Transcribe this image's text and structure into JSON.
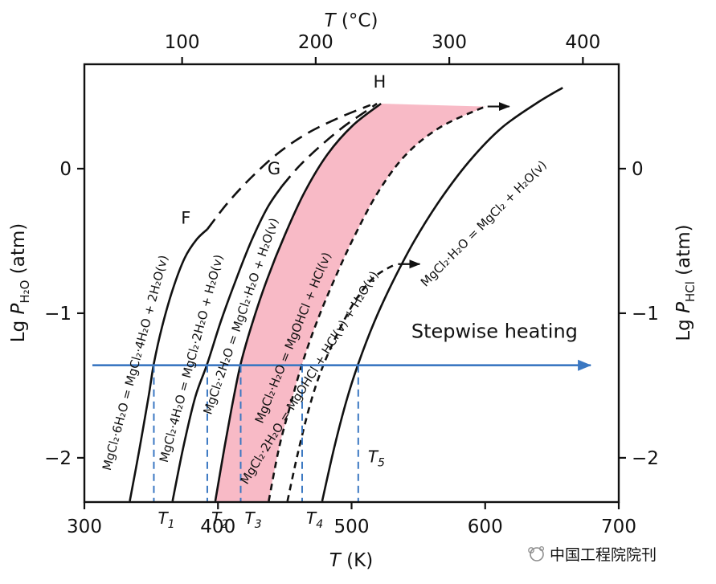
{
  "figure": {
    "watermark": {
      "text": "中国工程院院刊",
      "color": "#8f8f8f",
      "icon": "journal-logo"
    }
  },
  "chart_data": {
    "type": "line",
    "axes": {
      "bottom": {
        "label_italic": "T",
        "label_rest": " (K)",
        "min": 300,
        "max": 700,
        "ticks": [
          {
            "v": 300,
            "label": "300"
          },
          {
            "v": 400,
            "label": "400"
          },
          {
            "v": 500,
            "label": "500"
          },
          {
            "v": 600,
            "label": "600"
          },
          {
            "v": 700,
            "label": "700"
          }
        ]
      },
      "top": {
        "label_italic": "T",
        "label_rest": " (°C)",
        "offset_k": 273.15,
        "ticks": [
          {
            "c": 100,
            "label": "100"
          },
          {
            "c": 200,
            "label": "200"
          },
          {
            "c": 300,
            "label": "300"
          },
          {
            "c": 400,
            "label": "400"
          }
        ]
      },
      "left": {
        "label_pre": "Lg ",
        "label_italic": "P",
        "label_sub": "H₂O",
        "label_post": " (atm)",
        "min": -2.306,
        "max": 0.722,
        "ticks": [
          {
            "v": 0,
            "label": "0"
          },
          {
            "v": -1,
            "label": "−1"
          },
          {
            "v": -2,
            "label": "−2"
          }
        ]
      },
      "right": {
        "label_pre": "Lg ",
        "label_italic": "P",
        "label_sub": "HCl",
        "label_post": " (atm)",
        "ticks": [
          {
            "v": 0,
            "label": "0"
          },
          {
            "v": -1,
            "label": "−1"
          },
          {
            "v": -2,
            "label": "−2"
          }
        ]
      }
    },
    "series": [
      {
        "id": "mgcl2-6h2o-dehydration",
        "name": "MgCl₂·6H₂O = MgCl₂·4H₂O + 2H₂O(v)",
        "style": "solid",
        "color": "#111111",
        "points": [
          [
            334,
            -2.3
          ],
          [
            341,
            -1.95
          ],
          [
            348,
            -1.58
          ],
          [
            352,
            -1.35
          ],
          [
            358,
            -1.1
          ],
          [
            366,
            -0.84
          ],
          [
            375,
            -0.62
          ],
          [
            384,
            -0.49
          ],
          [
            392,
            -0.42
          ]
        ]
      },
      {
        "id": "mgcl2-6h2o-metastable-ext",
        "style": "dashed-long",
        "color": "#111111",
        "points": [
          [
            392,
            -0.42
          ],
          [
            407,
            -0.24
          ],
          [
            424,
            -0.07
          ],
          [
            444,
            0.1
          ],
          [
            466,
            0.24
          ],
          [
            490,
            0.35
          ],
          [
            514,
            0.44
          ]
        ]
      },
      {
        "id": "mgcl2-4h2o-dehydration",
        "name": "MgCl₂·4H₂O = MgCl₂·2H₂O + H₂O(v)",
        "style": "solid",
        "color": "#111111",
        "points": [
          [
            366,
            -2.3
          ],
          [
            374,
            -1.93
          ],
          [
            383,
            -1.58
          ],
          [
            392,
            -1.35
          ],
          [
            402,
            -1.06
          ],
          [
            413,
            -0.78
          ],
          [
            425,
            -0.5
          ],
          [
            437,
            -0.27
          ],
          [
            448,
            -0.12
          ]
        ]
      },
      {
        "id": "mgcl2-4h2o-metastable-ext",
        "style": "dashed-long",
        "color": "#111111",
        "points": [
          [
            448,
            -0.12
          ],
          [
            461,
            0.02
          ],
          [
            477,
            0.16
          ],
          [
            494,
            0.29
          ],
          [
            508,
            0.38
          ],
          [
            519,
            0.45
          ]
        ]
      },
      {
        "id": "mgcl2-2h2o-dehydration",
        "name": "MgCl₂·2H₂O = MgCl₂·H₂O + H₂O(v)",
        "style": "solid",
        "color": "#111111",
        "points": [
          [
            398,
            -2.3
          ],
          [
            405,
            -1.92
          ],
          [
            411,
            -1.62
          ],
          [
            417,
            -1.35
          ],
          [
            426,
            -1.06
          ],
          [
            437,
            -0.76
          ],
          [
            450,
            -0.46
          ],
          [
            465,
            -0.16
          ],
          [
            482,
            0.1
          ],
          [
            501,
            0.3
          ],
          [
            522,
            0.45
          ]
        ]
      },
      {
        "id": "mgcl2-h2o-hydrolysis",
        "name": "MgCl₂·H₂O = MgOHCl + HCl(v)",
        "style": "dashed-short",
        "color": "#111111",
        "end_arrow": true,
        "points": [
          [
            438,
            -2.3
          ],
          [
            446,
            -1.92
          ],
          [
            455,
            -1.61
          ],
          [
            463,
            -1.35
          ],
          [
            474,
            -1.06
          ],
          [
            487,
            -0.77
          ],
          [
            502,
            -0.47
          ],
          [
            520,
            -0.16
          ],
          [
            541,
            0.1
          ],
          [
            567,
            0.29
          ],
          [
            600,
            0.43
          ]
        ]
      },
      {
        "id": "mgcl2-2h2o-hydrolysis",
        "name": "MgCl₂·2H₂O = MgOHCl + HCl(v) + H₂O(v)",
        "style": "dashed-short",
        "color": "#111111",
        "end_arrow": true,
        "points": [
          [
            452,
            -2.3
          ],
          [
            460,
            -1.96
          ],
          [
            469,
            -1.63
          ],
          [
            478,
            -1.38
          ],
          [
            490,
            -1.13
          ],
          [
            503,
            -0.91
          ],
          [
            517,
            -0.75
          ],
          [
            533,
            -0.66
          ]
        ]
      },
      {
        "id": "mgcl2-h2o-full-dehydration",
        "name": "MgCl₂·H₂O = MgCl₂ + H₂O(v)",
        "style": "solid",
        "color": "#111111",
        "points": [
          [
            478,
            -2.3
          ],
          [
            487,
            -1.93
          ],
          [
            496,
            -1.61
          ],
          [
            505,
            -1.35
          ],
          [
            517,
            -1.06
          ],
          [
            531,
            -0.78
          ],
          [
            547,
            -0.5
          ],
          [
            566,
            -0.22
          ],
          [
            588,
            0.05
          ],
          [
            612,
            0.28
          ],
          [
            638,
            0.45
          ],
          [
            658,
            0.56
          ]
        ]
      }
    ],
    "region": {
      "left_series": "mgcl2-2h2o-dehydration",
      "right_series": "mgcl2-h2o-hydrolysis",
      "fill": "#f8b6c3",
      "opacity": 0.95
    },
    "curve_labels": [
      {
        "text": "MgCl₂·6H₂O = MgCl₂·4H₂O + 2H₂O(v)",
        "T": 341,
        "P": -1.35,
        "rotation": -75
      },
      {
        "text": "MgCl₂·4H₂O = MgCl₂·2H₂O + H₂O(v)",
        "T": 383,
        "P": -1.32,
        "rotation": -75
      },
      {
        "text": "MgCl₂·2H₂O = MgCl₂·H₂O + H₂O(v)",
        "T": 420,
        "P": -1.03,
        "rotation": -71
      },
      {
        "text": "MgCl₂·H₂O = MgOHCl + HCl(v)",
        "T": 459,
        "P": -1.18,
        "rotation": -68
      },
      {
        "text": "MgCl₂·2H₂O = MgOHCl + HCl(v) + H₂O(v)",
        "T": 471,
        "P": -1.46,
        "rotation": -58
      },
      {
        "text": "MgCl₂·H₂O = MgCl₂ + H₂O(v)",
        "T": 601,
        "P": -0.4,
        "rotation": -45
      }
    ],
    "point_labels": [
      {
        "text": "F",
        "T": 376,
        "P": -0.38
      },
      {
        "text": "G",
        "T": 442,
        "P": -0.04
      },
      {
        "text": "H",
        "T": 521,
        "P": 0.56
      }
    ],
    "heating_arrow": {
      "label": "Stepwise heating",
      "P": -1.36,
      "T_start": 306,
      "T_end": 679,
      "label_T": 607,
      "label_P": -1.17,
      "color": "#3b78c2",
      "label_color": "#ed1c0c"
    },
    "temperature_markers": {
      "color": "#3b78c2",
      "P_line": -1.36,
      "items": [
        {
          "base": "T",
          "sub": "1",
          "T": 352,
          "label_pos": "below"
        },
        {
          "base": "T",
          "sub": "2",
          "T": 392,
          "label_pos": "below"
        },
        {
          "base": "T",
          "sub": "3",
          "T": 417,
          "label_pos": "below"
        },
        {
          "base": "T",
          "sub": "4",
          "T": 463,
          "label_pos": "below"
        },
        {
          "base": "T",
          "sub": "5",
          "T": 505,
          "label_pos": "inside"
        }
      ]
    }
  }
}
